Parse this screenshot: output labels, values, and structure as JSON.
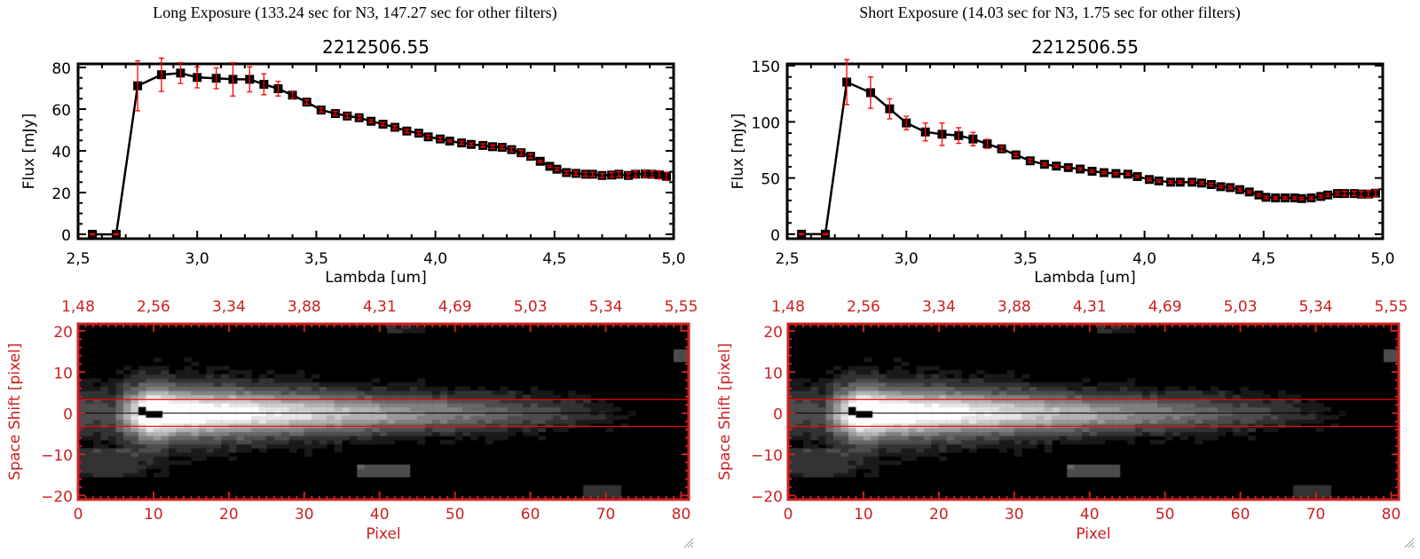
{
  "panels": [
    {
      "title": "Long Exposure (133.24 sec for N3, 147.27 sec for other filters)",
      "id": "long"
    },
    {
      "title": "Short Exposure (14.03 sec for N3, 1.75 sec for other filters)",
      "id": "short"
    }
  ],
  "colors": {
    "axis": "#000000",
    "errorbar": "#ff0000",
    "image_axis": "#cc2020",
    "extraction_line": "#ff0000"
  },
  "chart_data": [
    {
      "type": "line",
      "title": "2212506.55",
      "xlabel": "Lambda [um]",
      "ylabel": "Flux [mJy]",
      "xlim": [
        2.5,
        5.0
      ],
      "ylim": [
        -2.1,
        81.7
      ],
      "xticks": [
        2.5,
        3.0,
        3.5,
        4.0,
        4.5,
        5.0
      ],
      "xtick_labels": [
        "2,5",
        "3,0",
        "3,5",
        "4,0",
        "4,5",
        "5,0"
      ],
      "yticks": [
        0,
        20,
        40,
        60,
        80
      ],
      "ytick_labels": [
        "0",
        "20",
        "40",
        "60",
        "80"
      ],
      "x": [
        2.56,
        2.66,
        2.75,
        2.85,
        2.93,
        3.0,
        3.08,
        3.15,
        3.22,
        3.28,
        3.34,
        3.4,
        3.46,
        3.52,
        3.58,
        3.63,
        3.68,
        3.73,
        3.78,
        3.83,
        3.88,
        3.93,
        3.97,
        4.02,
        4.06,
        4.11,
        4.15,
        4.2,
        4.24,
        4.28,
        4.32,
        4.36,
        4.4,
        4.44,
        4.48,
        4.51,
        4.55,
        4.59,
        4.63,
        4.66,
        4.7,
        4.74,
        4.77,
        4.81,
        4.84,
        4.88,
        4.91,
        4.94,
        4.97
      ],
      "y": [
        0,
        0,
        71.2,
        76.5,
        77.3,
        75.2,
        74.8,
        74.3,
        74.3,
        71.9,
        69.8,
        66.7,
        63.4,
        59.6,
        57.9,
        56.7,
        55.9,
        54.2,
        52.8,
        51.3,
        49.5,
        48.5,
        46.7,
        45.7,
        44.7,
        43.8,
        43.1,
        42.6,
        42,
        41.7,
        40.6,
        39.1,
        37.4,
        35,
        32.6,
        31.2,
        29.6,
        29.2,
        28.8,
        28.8,
        28.2,
        28.4,
        28.8,
        28.2,
        28.8,
        28.9,
        28.8,
        28.5,
        27.8
      ],
      "yerr": [
        0.3,
        0.3,
        12,
        8,
        5,
        5,
        5,
        8,
        6,
        5,
        3.5,
        1.5,
        1,
        1,
        1,
        1,
        1,
        0.7,
        0.8,
        0.8,
        0.8,
        0.8,
        0.8,
        0.8,
        0.5,
        0.7,
        0.7,
        0.8,
        0.8,
        0.8,
        1,
        1.2,
        1,
        0.5,
        0.5,
        0.7,
        0.8,
        1,
        1,
        1,
        1,
        1.2,
        1.2,
        1.2,
        1.5,
        1.5,
        1.5,
        2,
        2
      ]
    },
    {
      "type": "line",
      "title": "2212506.55",
      "xlabel": "Lambda [um]",
      "ylabel": "Flux [mJy]",
      "xlim": [
        2.5,
        5.0
      ],
      "ylim": [
        -4,
        151.6
      ],
      "xticks": [
        2.5,
        3.0,
        3.5,
        4.0,
        4.5,
        5.0
      ],
      "xtick_labels": [
        "2,5",
        "3,0",
        "3,5",
        "4,0",
        "4,5",
        "5,0"
      ],
      "yticks": [
        0,
        50,
        100,
        150
      ],
      "ytick_labels": [
        "0",
        "50",
        "100",
        "150"
      ],
      "x": [
        2.56,
        2.66,
        2.75,
        2.85,
        2.93,
        3.0,
        3.08,
        3.15,
        3.22,
        3.28,
        3.34,
        3.4,
        3.46,
        3.52,
        3.58,
        3.63,
        3.68,
        3.73,
        3.78,
        3.83,
        3.88,
        3.93,
        3.97,
        4.02,
        4.06,
        4.11,
        4.15,
        4.2,
        4.24,
        4.28,
        4.32,
        4.36,
        4.4,
        4.44,
        4.48,
        4.51,
        4.55,
        4.59,
        4.63,
        4.66,
        4.7,
        4.74,
        4.77,
        4.81,
        4.84,
        4.88,
        4.91,
        4.94,
        4.97
      ],
      "y": [
        0,
        0,
        135.4,
        126,
        111.6,
        99,
        91,
        89,
        87.8,
        84.7,
        80.4,
        76,
        70.6,
        65.3,
        62.2,
        60.6,
        59.3,
        58,
        56,
        54.8,
        54,
        53.4,
        51.3,
        48.7,
        47.4,
        46.3,
        46.3,
        46.3,
        45.5,
        44.2,
        42.3,
        41.5,
        39.7,
        37.6,
        34.9,
        32.8,
        32.3,
        32.3,
        32.3,
        31.7,
        32.3,
        33.6,
        34.9,
        36.2,
        36.2,
        36.2,
        35.7,
        35.7,
        36.5
      ],
      "yerr": [
        0.5,
        0.5,
        20,
        14,
        9,
        6,
        8,
        10,
        7,
        6,
        4,
        2,
        1.5,
        1.5,
        1.2,
        1,
        1,
        1,
        1,
        1,
        1,
        1,
        1,
        1,
        1,
        1,
        1,
        1,
        1,
        1.2,
        1.2,
        1.2,
        1.2,
        1,
        1,
        1,
        1,
        1,
        1,
        1,
        1,
        1.2,
        1.2,
        1.5,
        2,
        2,
        2.5,
        3,
        3
      ]
    },
    {
      "type": "heatmap",
      "xlabel": "Pixel",
      "ylabel": "Space Shift [pixel]",
      "xlim": [
        0,
        81
      ],
      "ylim": [
        -21,
        21.7
      ],
      "xticks": [
        0,
        10,
        20,
        30,
        40,
        50,
        60,
        70,
        80
      ],
      "xtick_labels": [
        "0",
        "10",
        "20",
        "30",
        "40",
        "50",
        "60",
        "70",
        "80"
      ],
      "top_xtick_labels": [
        "1,48",
        "2,56",
        "3,34",
        "3,88",
        "4,31",
        "4,69",
        "5,03",
        "5,34",
        "5,55"
      ],
      "yticks": [
        -20,
        -10,
        0,
        10,
        20
      ],
      "ytick_labels": [
        "−20",
        "−10",
        "0",
        "10",
        "20"
      ],
      "extraction_lines": [
        3.3,
        -3.2
      ],
      "center_line": 0
    },
    {
      "type": "heatmap",
      "xlabel": "Pixel",
      "ylabel": "Space Shift [pixel]",
      "xlim": [
        0,
        81
      ],
      "ylim": [
        -21,
        21.7
      ],
      "xticks": [
        0,
        10,
        20,
        30,
        40,
        50,
        60,
        70,
        80
      ],
      "xtick_labels": [
        "0",
        "10",
        "20",
        "30",
        "40",
        "50",
        "60",
        "70",
        "80"
      ],
      "top_xtick_labels": [
        "1,48",
        "2,56",
        "3,34",
        "3,88",
        "4,31",
        "4,69",
        "5,03",
        "5,34",
        "5,55"
      ],
      "yticks": [
        -20,
        -10,
        0,
        10,
        20
      ],
      "ytick_labels": [
        "−20",
        "−10",
        "0",
        "10",
        "20"
      ],
      "extraction_lines": [
        3.3,
        -3.2
      ],
      "center_line": 0
    }
  ]
}
